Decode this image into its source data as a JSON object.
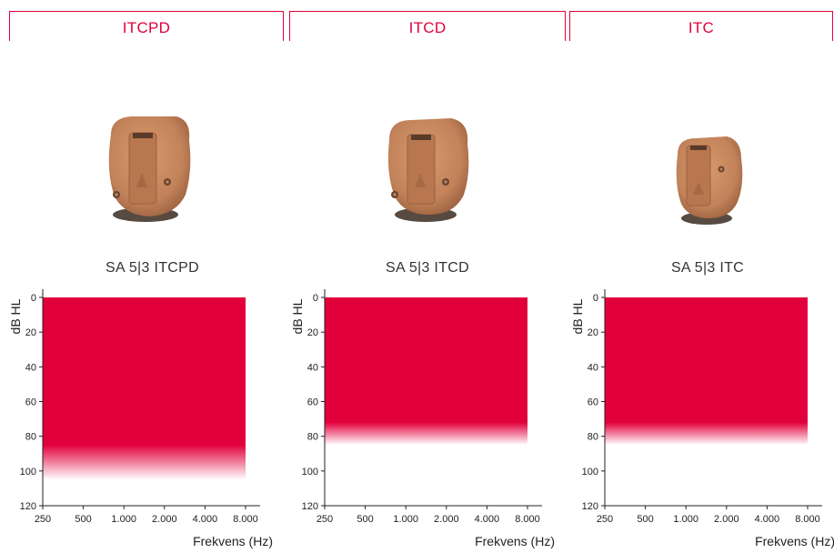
{
  "colors": {
    "accent": "#e2003c",
    "device_skin": "#c8895e",
    "device_shadow": "#3a2a20"
  },
  "columns": [
    {
      "header": "ITCPD",
      "model": "SA 5|3 ITCPD",
      "device_icon": "itcpd-hearing-aid-image"
    },
    {
      "header": "ITCD",
      "model": "SA 5|3 ITCD",
      "device_icon": "itcd-hearing-aid-image"
    },
    {
      "header": "ITC",
      "model": "SA 5|3 ITC",
      "device_icon": "itc-hearing-aid-image"
    }
  ],
  "chart_data": [
    {
      "type": "area",
      "title": "",
      "xlabel": "Frekvens (Hz)",
      "ylabel": "dB HL",
      "x_scale": "log",
      "x_ticks": [
        250,
        500,
        1000,
        2000,
        4000,
        8000
      ],
      "x_tick_labels": [
        "250",
        "500",
        "1.000",
        "2.000",
        "4.000",
        "8.000"
      ],
      "y_ticks": [
        0,
        20,
        40,
        60,
        80,
        100,
        120
      ],
      "y_tick_labels": [
        "0",
        "20",
        "40",
        "60",
        "80",
        "100",
        "120"
      ],
      "ylim": [
        0,
        120
      ],
      "y_inverted": true,
      "grid": false,
      "series": [
        {
          "x_range": [
            250,
            8000
          ],
          "fitting_range_dB": [
            0,
            85
          ],
          "fade_to_dB": 105
        }
      ]
    },
    {
      "type": "area",
      "title": "",
      "xlabel": "Frekvens (Hz)",
      "ylabel": "dB HL",
      "x_scale": "log",
      "x_ticks": [
        250,
        500,
        1000,
        2000,
        4000,
        8000
      ],
      "x_tick_labels": [
        "250",
        "500",
        "1.000",
        "2.000",
        "4.000",
        "8.000"
      ],
      "y_ticks": [
        0,
        20,
        40,
        60,
        80,
        100,
        120
      ],
      "y_tick_labels": [
        "0",
        "20",
        "40",
        "60",
        "80",
        "100",
        "120"
      ],
      "ylim": [
        0,
        120
      ],
      "y_inverted": true,
      "grid": false,
      "series": [
        {
          "x_range": [
            250,
            8000
          ],
          "fitting_range_dB": [
            0,
            72
          ],
          "fade_to_dB": 85
        }
      ]
    },
    {
      "type": "area",
      "title": "",
      "xlabel": "Frekvens (Hz)",
      "ylabel": "dB HL",
      "x_scale": "log",
      "x_ticks": [
        250,
        500,
        1000,
        2000,
        4000,
        8000
      ],
      "x_tick_labels": [
        "250",
        "500",
        "1.000",
        "2.000",
        "4.000",
        "8.000"
      ],
      "y_ticks": [
        0,
        20,
        40,
        60,
        80,
        100,
        120
      ],
      "y_tick_labels": [
        "0",
        "20",
        "40",
        "60",
        "80",
        "100",
        "120"
      ],
      "ylim": [
        0,
        120
      ],
      "y_inverted": true,
      "grid": false,
      "series": [
        {
          "x_range": [
            250,
            8000
          ],
          "fitting_range_dB": [
            0,
            72
          ],
          "fade_to_dB": 85
        }
      ]
    }
  ]
}
